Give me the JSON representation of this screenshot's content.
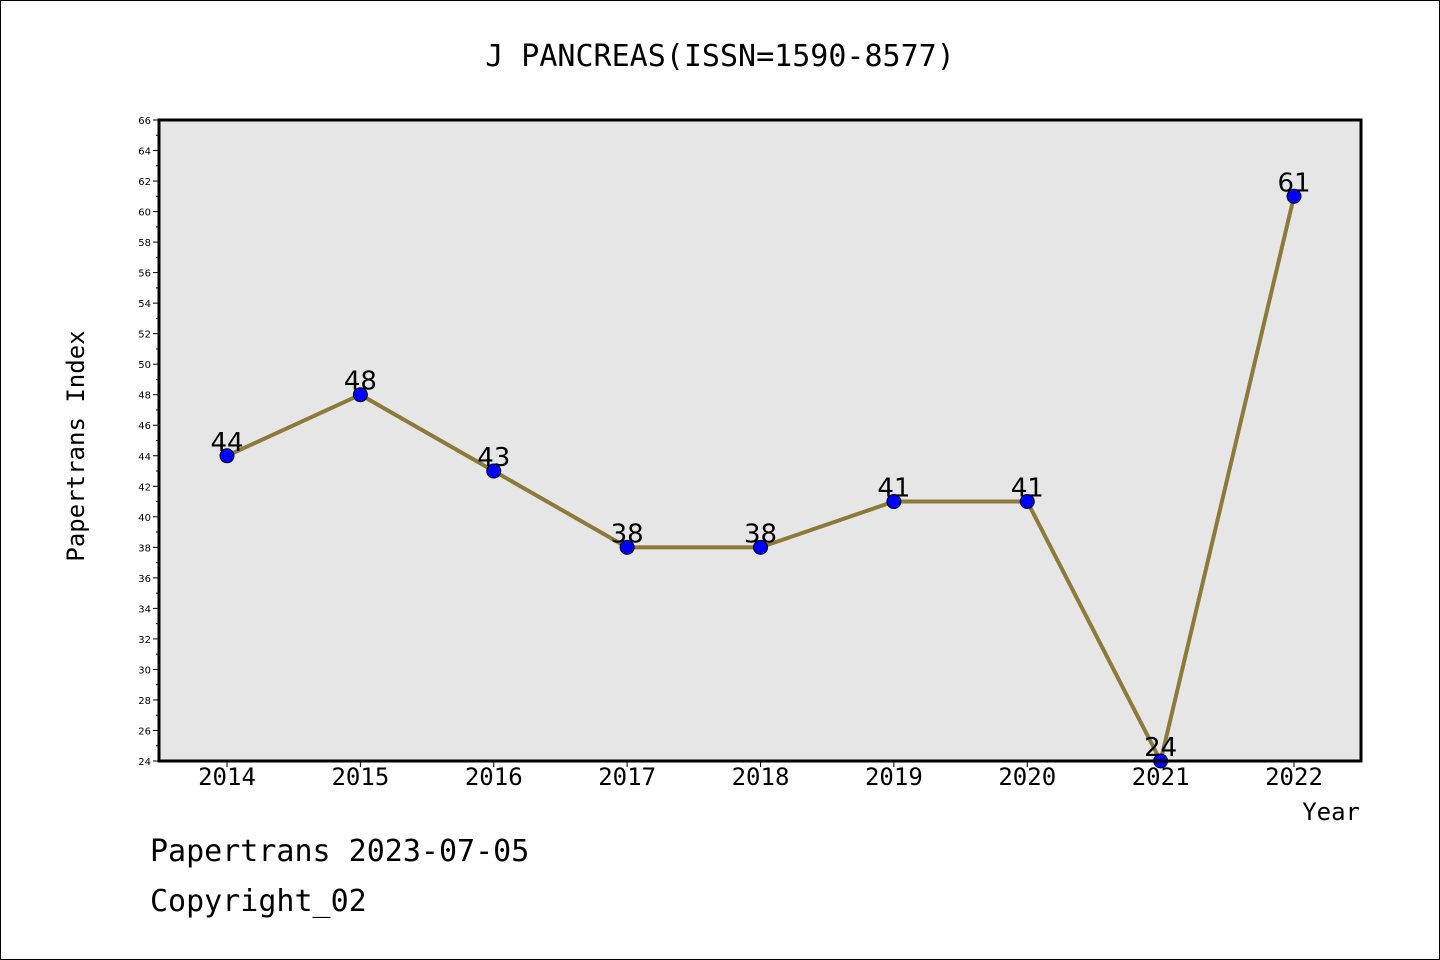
{
  "chart_data": {
    "type": "line",
    "title": "J PANCREAS(ISSN=1590-8577)",
    "xlabel": "Year",
    "ylabel": "Papertrans Index",
    "categories": [
      "2014",
      "2015",
      "2016",
      "2017",
      "2018",
      "2019",
      "2020",
      "2021",
      "2022"
    ],
    "series": [
      {
        "values": [
          44,
          48,
          43,
          38,
          38,
          41,
          41,
          24,
          61
        ]
      }
    ],
    "ylim": [
      24,
      66
    ],
    "yticks": [
      24,
      26,
      28,
      30,
      32,
      34,
      36,
      38,
      40,
      42,
      44,
      46,
      48,
      50,
      52,
      54,
      56,
      58,
      60,
      62,
      64,
      66
    ],
    "grid": false,
    "data_labels": true,
    "colors": {
      "line": "#8c7a3a",
      "marker": "#0000ff",
      "plot_background": "#e6e6e6"
    }
  },
  "footer": {
    "line1": "Papertrans 2023-07-05",
    "line2": "Copyright_02"
  }
}
